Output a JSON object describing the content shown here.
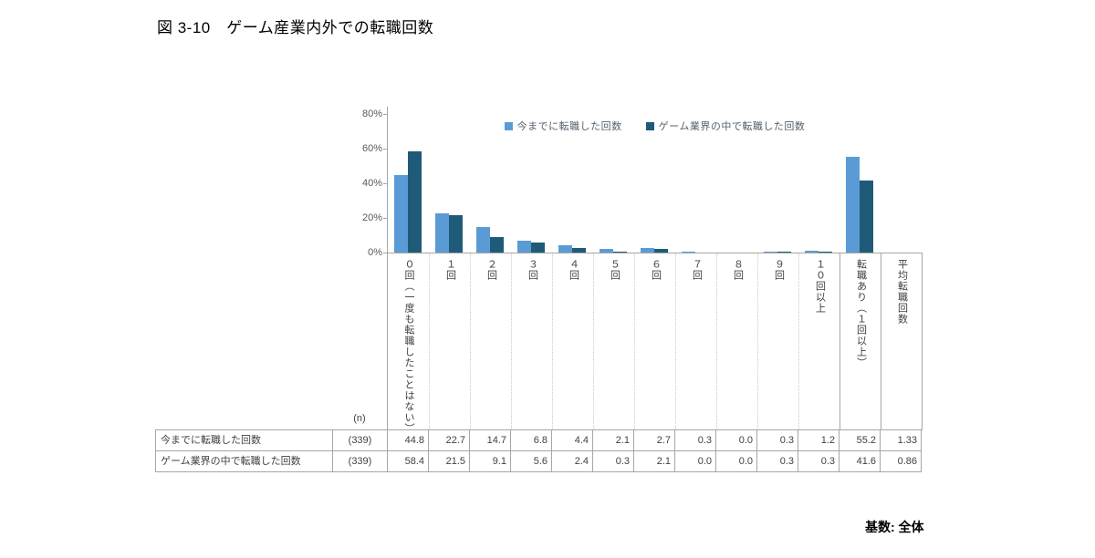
{
  "title": "図 3-10　ゲーム産業内外での転職回数",
  "footer": {
    "base_label": "基数: 全体"
  },
  "legend": [
    {
      "label": "今までに転職した回数",
      "color": "#5b9bd5"
    },
    {
      "label": "ゲーム業界の中で転職した回数",
      "color": "#1f5b78"
    }
  ],
  "chart_data": {
    "type": "bar",
    "title": "図 3-10　ゲーム産業内外での転職回数",
    "categories": [
      "0回（一度も転職したことはない）",
      "1回",
      "2回",
      "3回",
      "4回",
      "5回",
      "6回",
      "7回",
      "8回",
      "9回",
      "10回以上",
      "転職あり（1回以上）",
      "平均転職回数"
    ],
    "xlabel": "",
    "ylabel": "",
    "ylim": [
      0,
      80
    ],
    "yticks": [
      0,
      20,
      40,
      60,
      80
    ],
    "ytick_format": "percent",
    "grid": false,
    "legend_position": "top-center",
    "note": "平均転職回数 column has no bars; its values are mean counts, not percentages",
    "series": [
      {
        "name": "今までに転職した回数",
        "color": "#5b9bd5",
        "n": "(339)",
        "values": [
          44.8,
          22.7,
          14.7,
          6.8,
          4.4,
          2.1,
          2.7,
          0.3,
          0.0,
          0.3,
          1.2,
          55.2
        ],
        "average": 1.33
      },
      {
        "name": "ゲーム業界の中で転職した回数",
        "color": "#1f5b78",
        "n": "(339)",
        "values": [
          58.4,
          21.5,
          9.1,
          5.6,
          2.4,
          0.3,
          2.1,
          0.0,
          0.0,
          0.3,
          0.3,
          41.6
        ],
        "average": 0.86
      }
    ]
  },
  "table": {
    "n_header": "(n)",
    "rows": [
      {
        "label": "今までに転職した回数",
        "n": "(339)",
        "values": [
          "44.8",
          "22.7",
          "14.7",
          "6.8",
          "4.4",
          "2.1",
          "2.7",
          "0.3",
          "0.0",
          "0.3",
          "1.2",
          "55.2",
          "1.33"
        ]
      },
      {
        "label": "ゲーム業界の中で転職した回数",
        "n": "(339)",
        "values": [
          "58.4",
          "21.5",
          "9.1",
          "5.6",
          "2.4",
          "0.3",
          "2.1",
          "0.0",
          "0.0",
          "0.3",
          "0.3",
          "41.6",
          "0.86"
        ]
      }
    ]
  }
}
